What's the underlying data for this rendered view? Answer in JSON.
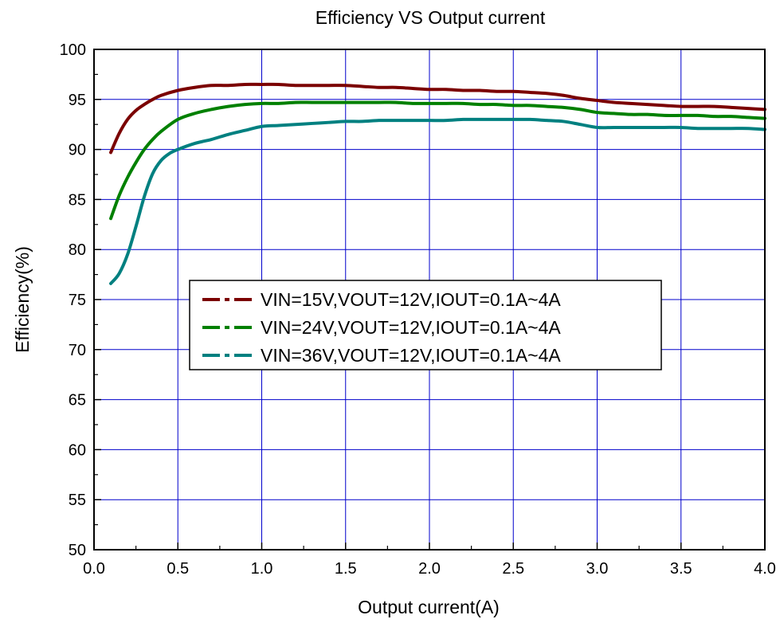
{
  "chart_data": {
    "type": "line",
    "title": "Efficiency VS Output current",
    "xlabel": "Output current(A)",
    "ylabel": "Efficiency(%)",
    "xlim": [
      0.0,
      4.0
    ],
    "ylim": [
      50,
      100
    ],
    "x_ticks": [
      "0.0",
      "0.5",
      "1.0",
      "1.5",
      "2.0",
      "2.5",
      "3.0",
      "3.5",
      "4.0"
    ],
    "y_ticks": [
      "50",
      "55",
      "60",
      "65",
      "70",
      "75",
      "80",
      "85",
      "90",
      "95",
      "100"
    ],
    "grid": true,
    "legend_position": "center",
    "series": [
      {
        "name": "VIN=15V,VOUT=12V,IOUT=0.1A~4A",
        "color": "#7b0000",
        "x": [
          0.1,
          0.15,
          0.2,
          0.25,
          0.3,
          0.35,
          0.4,
          0.5,
          0.6,
          0.7,
          0.8,
          0.9,
          1.0,
          1.1,
          1.2,
          1.3,
          1.4,
          1.5,
          1.6,
          1.7,
          1.8,
          1.9,
          2.0,
          2.1,
          2.2,
          2.3,
          2.4,
          2.5,
          2.6,
          2.7,
          2.8,
          2.9,
          3.0,
          3.1,
          3.2,
          3.3,
          3.4,
          3.5,
          3.6,
          3.7,
          3.8,
          3.9,
          4.0
        ],
        "y": [
          89.7,
          91.6,
          93.0,
          93.9,
          94.5,
          95.0,
          95.4,
          95.9,
          96.2,
          96.4,
          96.4,
          96.5,
          96.5,
          96.5,
          96.4,
          96.4,
          96.4,
          96.4,
          96.3,
          96.2,
          96.2,
          96.1,
          96.0,
          96.0,
          95.9,
          95.9,
          95.8,
          95.8,
          95.7,
          95.6,
          95.4,
          95.1,
          94.9,
          94.7,
          94.6,
          94.5,
          94.4,
          94.3,
          94.3,
          94.3,
          94.2,
          94.1,
          94.0
        ]
      },
      {
        "name": "VIN=24V,VOUT=12V,IOUT=0.1A~4A",
        "color": "#008000",
        "x": [
          0.1,
          0.15,
          0.2,
          0.25,
          0.3,
          0.35,
          0.4,
          0.5,
          0.6,
          0.7,
          0.8,
          0.9,
          1.0,
          1.1,
          1.2,
          1.3,
          1.4,
          1.5,
          1.6,
          1.7,
          1.8,
          1.9,
          2.0,
          2.1,
          2.2,
          2.3,
          2.4,
          2.5,
          2.6,
          2.7,
          2.8,
          2.9,
          3.0,
          3.1,
          3.2,
          3.3,
          3.4,
          3.5,
          3.6,
          3.7,
          3.8,
          3.9,
          4.0
        ],
        "y": [
          83.1,
          85.4,
          87.2,
          88.7,
          90.0,
          91.0,
          91.8,
          93.0,
          93.6,
          94.0,
          94.3,
          94.5,
          94.6,
          94.6,
          94.7,
          94.7,
          94.7,
          94.7,
          94.7,
          94.7,
          94.7,
          94.6,
          94.6,
          94.6,
          94.6,
          94.5,
          94.5,
          94.4,
          94.4,
          94.3,
          94.2,
          94.0,
          93.7,
          93.6,
          93.5,
          93.5,
          93.4,
          93.4,
          93.4,
          93.3,
          93.3,
          93.2,
          93.1
        ]
      },
      {
        "name": "VIN=36V,VOUT=12V,IOUT=0.1A~4A",
        "color": "#008080",
        "x": [
          0.1,
          0.15,
          0.2,
          0.25,
          0.3,
          0.35,
          0.4,
          0.45,
          0.5,
          0.6,
          0.7,
          0.8,
          0.9,
          1.0,
          1.1,
          1.2,
          1.3,
          1.4,
          1.5,
          1.6,
          1.7,
          1.8,
          1.9,
          2.0,
          2.1,
          2.2,
          2.3,
          2.4,
          2.5,
          2.6,
          2.7,
          2.8,
          2.9,
          3.0,
          3.1,
          3.2,
          3.3,
          3.4,
          3.5,
          3.6,
          3.7,
          3.8,
          3.9,
          4.0
        ],
        "y": [
          76.6,
          77.6,
          79.5,
          82.3,
          85.3,
          87.6,
          88.9,
          89.6,
          90.0,
          90.6,
          91.0,
          91.5,
          91.9,
          92.3,
          92.4,
          92.5,
          92.6,
          92.7,
          92.8,
          92.8,
          92.9,
          92.9,
          92.9,
          92.9,
          92.9,
          93.0,
          93.0,
          93.0,
          93.0,
          93.0,
          92.9,
          92.8,
          92.5,
          92.2,
          92.2,
          92.2,
          92.2,
          92.2,
          92.2,
          92.1,
          92.1,
          92.1,
          92.1,
          92.0
        ]
      }
    ]
  }
}
